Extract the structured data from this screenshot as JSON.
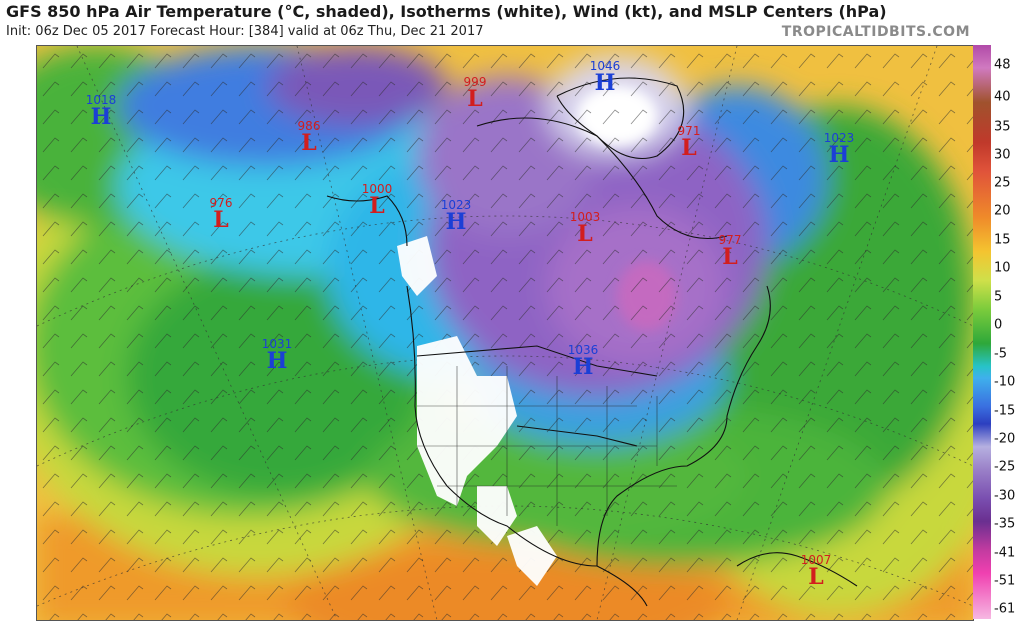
{
  "header": {
    "title": "GFS 850 hPa Air Temperature (°C, shaded), Isotherms (white), Wind (kt), and MSLP Centers (hPa)",
    "subtitle": "Init: 06z Dec 05 2017   Forecast Hour: [384]   valid at 06z Thu, Dec 21 2017",
    "brand": "TROPICALTIDBITS.COM"
  },
  "colorbar": {
    "labels": [
      "48",
      "40",
      "35",
      "30",
      "25",
      "20",
      "15",
      "10",
      "5",
      "0",
      "-5",
      "-10",
      "-15",
      "-20",
      "-25",
      "-30",
      "-35",
      "-41",
      "-51",
      "-61"
    ]
  },
  "pressure_centers": [
    {
      "type": "H",
      "value": "1018"
    },
    {
      "type": "L",
      "value": "986"
    },
    {
      "type": "L",
      "value": "999"
    },
    {
      "type": "H",
      "value": "1046"
    },
    {
      "type": "L",
      "value": "971"
    },
    {
      "type": "H",
      "value": "1023"
    },
    {
      "type": "L",
      "value": "976"
    },
    {
      "type": "L",
      "value": "1000"
    },
    {
      "type": "H",
      "value": "1023"
    },
    {
      "type": "L",
      "value": "1003"
    },
    {
      "type": "L",
      "value": "977"
    },
    {
      "type": "H",
      "value": "1031"
    },
    {
      "type": "H",
      "value": "1036"
    },
    {
      "type": "L",
      "value": "1007"
    }
  ],
  "colors": {
    "high": "#1b3fd6",
    "low": "#d21e1e"
  }
}
